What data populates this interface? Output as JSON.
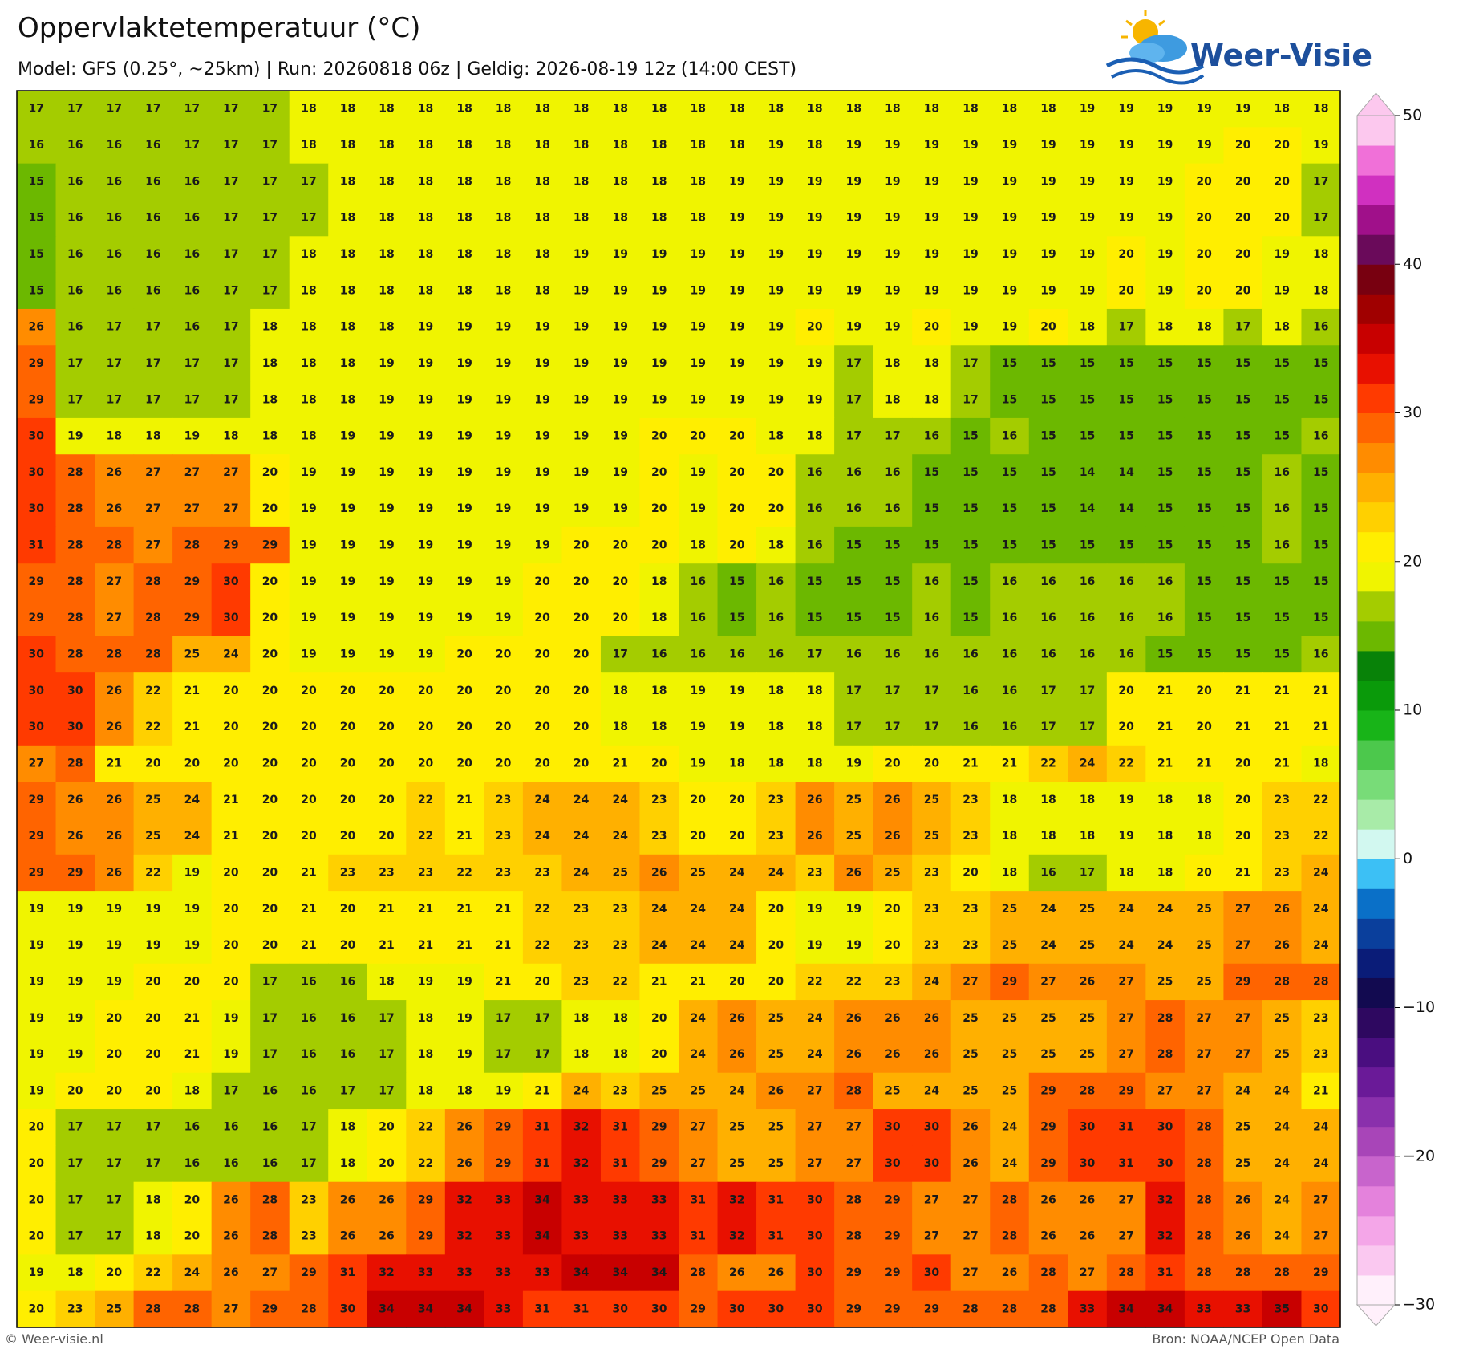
{
  "header": {
    "title": "Oppervlaktetemperatuur (°C)",
    "subtitle": "Model: GFS (0.25°, ~25km)  |  Run: 20260818 06z  |  Geldig: 2026-08-19 12z (14:00 CEST)"
  },
  "logo": "Weer-Visie",
  "footer": {
    "left": "© Weer-visie.nl",
    "right": "Bron: NOAA/NCEP Open Data"
  },
  "chart_data": {
    "type": "heatmap",
    "values": [
      [
        17,
        17,
        17,
        17,
        17,
        17,
        17,
        18,
        18,
        18,
        18,
        18,
        18,
        18,
        18,
        18,
        18,
        18,
        18,
        18,
        18,
        18,
        18,
        18,
        18,
        18,
        18,
        19,
        19,
        19,
        19,
        19,
        18,
        18
      ],
      [
        16,
        16,
        16,
        16,
        17,
        17,
        17,
        18,
        18,
        18,
        18,
        18,
        18,
        18,
        18,
        18,
        18,
        18,
        18,
        19,
        18,
        19,
        19,
        19,
        19,
        19,
        19,
        19,
        19,
        19,
        19,
        20,
        20,
        19
      ],
      [
        15,
        16,
        16,
        16,
        16,
        17,
        17,
        17,
        18,
        18,
        18,
        18,
        18,
        18,
        18,
        18,
        18,
        18,
        19,
        19,
        19,
        19,
        19,
        19,
        19,
        19,
        19,
        19,
        19,
        19,
        20,
        20,
        20,
        17
      ],
      [
        15,
        16,
        16,
        16,
        16,
        17,
        17,
        17,
        18,
        18,
        18,
        18,
        18,
        18,
        18,
        18,
        18,
        18,
        19,
        19,
        19,
        19,
        19,
        19,
        19,
        19,
        19,
        19,
        19,
        19,
        20,
        20,
        20,
        17
      ],
      [
        15,
        16,
        16,
        16,
        16,
        17,
        17,
        18,
        18,
        18,
        18,
        18,
        18,
        18,
        19,
        19,
        19,
        19,
        19,
        19,
        19,
        19,
        19,
        19,
        19,
        19,
        19,
        19,
        20,
        19,
        20,
        20,
        19,
        18
      ],
      [
        15,
        16,
        16,
        16,
        16,
        17,
        17,
        18,
        18,
        18,
        18,
        18,
        18,
        18,
        19,
        19,
        19,
        19,
        19,
        19,
        19,
        19,
        19,
        19,
        19,
        19,
        19,
        19,
        20,
        19,
        20,
        20,
        19,
        18
      ],
      [
        26,
        16,
        17,
        17,
        16,
        17,
        18,
        18,
        18,
        18,
        19,
        19,
        19,
        19,
        19,
        19,
        19,
        19,
        19,
        19,
        20,
        19,
        19,
        20,
        19,
        19,
        20,
        18,
        17,
        18,
        18,
        17,
        18,
        16
      ],
      [
        29,
        17,
        17,
        17,
        17,
        17,
        18,
        18,
        18,
        19,
        19,
        19,
        19,
        19,
        19,
        19,
        19,
        19,
        19,
        19,
        19,
        17,
        18,
        18,
        17,
        15,
        15,
        15,
        15,
        15,
        15,
        15,
        15,
        15
      ],
      [
        29,
        17,
        17,
        17,
        17,
        17,
        18,
        18,
        18,
        19,
        19,
        19,
        19,
        19,
        19,
        19,
        19,
        19,
        19,
        19,
        19,
        17,
        18,
        18,
        17,
        15,
        15,
        15,
        15,
        15,
        15,
        15,
        15,
        15
      ],
      [
        30,
        19,
        18,
        18,
        19,
        18,
        18,
        18,
        19,
        19,
        19,
        19,
        19,
        19,
        19,
        19,
        20,
        20,
        20,
        18,
        18,
        17,
        17,
        16,
        15,
        16,
        15,
        15,
        15,
        15,
        15,
        15,
        15,
        16
      ],
      [
        30,
        28,
        26,
        27,
        27,
        27,
        20,
        19,
        19,
        19,
        19,
        19,
        19,
        19,
        19,
        19,
        20,
        19,
        20,
        20,
        16,
        16,
        16,
        15,
        15,
        15,
        15,
        14,
        14,
        15,
        15,
        15,
        16,
        15
      ],
      [
        30,
        28,
        26,
        27,
        27,
        27,
        20,
        19,
        19,
        19,
        19,
        19,
        19,
        19,
        19,
        19,
        20,
        19,
        20,
        20,
        16,
        16,
        16,
        15,
        15,
        15,
        15,
        14,
        14,
        15,
        15,
        15,
        16,
        15
      ],
      [
        31,
        28,
        28,
        27,
        28,
        29,
        29,
        19,
        19,
        19,
        19,
        19,
        19,
        19,
        20,
        20,
        20,
        18,
        20,
        18,
        16,
        15,
        15,
        15,
        15,
        15,
        15,
        15,
        15,
        15,
        15,
        15,
        16,
        15
      ],
      [
        29,
        28,
        27,
        28,
        29,
        30,
        20,
        19,
        19,
        19,
        19,
        19,
        19,
        20,
        20,
        20,
        18,
        16,
        15,
        16,
        15,
        15,
        15,
        16,
        15,
        16,
        16,
        16,
        16,
        16,
        15,
        15,
        15,
        15
      ],
      [
        29,
        28,
        27,
        28,
        29,
        30,
        20,
        19,
        19,
        19,
        19,
        19,
        19,
        20,
        20,
        20,
        18,
        16,
        15,
        16,
        15,
        15,
        15,
        16,
        15,
        16,
        16,
        16,
        16,
        16,
        15,
        15,
        15,
        15
      ],
      [
        30,
        28,
        28,
        28,
        25,
        24,
        20,
        19,
        19,
        19,
        19,
        20,
        20,
        20,
        20,
        17,
        16,
        16,
        16,
        16,
        17,
        16,
        16,
        16,
        16,
        16,
        16,
        16,
        16,
        15,
        15,
        15,
        15,
        16
      ],
      [
        30,
        30,
        26,
        22,
        21,
        20,
        20,
        20,
        20,
        20,
        20,
        20,
        20,
        20,
        20,
        18,
        18,
        19,
        19,
        18,
        18,
        17,
        17,
        17,
        16,
        16,
        17,
        17,
        20,
        21,
        20,
        21,
        21,
        21
      ],
      [
        30,
        30,
        26,
        22,
        21,
        20,
        20,
        20,
        20,
        20,
        20,
        20,
        20,
        20,
        20,
        18,
        18,
        19,
        19,
        18,
        18,
        17,
        17,
        17,
        16,
        16,
        17,
        17,
        20,
        21,
        20,
        21,
        21,
        21
      ],
      [
        27,
        28,
        21,
        20,
        20,
        20,
        20,
        20,
        20,
        20,
        20,
        20,
        20,
        20,
        20,
        21,
        20,
        19,
        18,
        18,
        18,
        19,
        20,
        20,
        21,
        21,
        22,
        24,
        22,
        21,
        21,
        20,
        21,
        18
      ],
      [
        29,
        26,
        26,
        25,
        24,
        21,
        20,
        20,
        20,
        20,
        22,
        21,
        23,
        24,
        24,
        24,
        23,
        20,
        20,
        23,
        26,
        25,
        26,
        25,
        23,
        18,
        18,
        18,
        19,
        18,
        18,
        20,
        23,
        22
      ],
      [
        29,
        26,
        26,
        25,
        24,
        21,
        20,
        20,
        20,
        20,
        22,
        21,
        23,
        24,
        24,
        24,
        23,
        20,
        20,
        23,
        26,
        25,
        26,
        25,
        23,
        18,
        18,
        18,
        19,
        18,
        18,
        20,
        23,
        22
      ],
      [
        29,
        29,
        26,
        22,
        19,
        20,
        20,
        21,
        23,
        23,
        23,
        22,
        23,
        23,
        24,
        25,
        26,
        25,
        24,
        24,
        23,
        26,
        25,
        23,
        20,
        18,
        16,
        17,
        18,
        18,
        20,
        21,
        23,
        24
      ],
      [
        19,
        19,
        19,
        19,
        19,
        20,
        20,
        21,
        20,
        21,
        21,
        21,
        21,
        22,
        23,
        23,
        24,
        24,
        24,
        20,
        19,
        19,
        20,
        23,
        23,
        25,
        24,
        25,
        24,
        24,
        25,
        27,
        26,
        24
      ],
      [
        19,
        19,
        19,
        19,
        19,
        20,
        20,
        21,
        20,
        21,
        21,
        21,
        21,
        22,
        23,
        23,
        24,
        24,
        24,
        20,
        19,
        19,
        20,
        23,
        23,
        25,
        24,
        25,
        24,
        24,
        25,
        27,
        26,
        24
      ],
      [
        19,
        19,
        19,
        20,
        20,
        20,
        17,
        16,
        16,
        18,
        19,
        19,
        21,
        20,
        23,
        22,
        21,
        21,
        20,
        20,
        22,
        22,
        23,
        24,
        27,
        29,
        27,
        26,
        27,
        25,
        25,
        29,
        28,
        28
      ],
      [
        19,
        19,
        20,
        20,
        21,
        19,
        17,
        16,
        16,
        17,
        18,
        19,
        17,
        17,
        18,
        18,
        20,
        24,
        26,
        25,
        24,
        26,
        26,
        26,
        25,
        25,
        25,
        25,
        27,
        28,
        27,
        27,
        25,
        23
      ],
      [
        19,
        19,
        20,
        20,
        21,
        19,
        17,
        16,
        16,
        17,
        18,
        19,
        17,
        17,
        18,
        18,
        20,
        24,
        26,
        25,
        24,
        26,
        26,
        26,
        25,
        25,
        25,
        25,
        27,
        28,
        27,
        27,
        25,
        23
      ],
      [
        19,
        20,
        20,
        20,
        18,
        17,
        16,
        16,
        17,
        17,
        18,
        18,
        19,
        21,
        24,
        23,
        25,
        25,
        24,
        26,
        27,
        28,
        25,
        24,
        25,
        25,
        29,
        28,
        29,
        27,
        27,
        24,
        24,
        21
      ],
      [
        20,
        17,
        17,
        17,
        16,
        16,
        16,
        17,
        18,
        20,
        22,
        26,
        29,
        31,
        32,
        31,
        29,
        27,
        25,
        25,
        27,
        27,
        30,
        30,
        26,
        24,
        29,
        30,
        31,
        30,
        28,
        25,
        24,
        24
      ],
      [
        20,
        17,
        17,
        17,
        16,
        16,
        16,
        17,
        18,
        20,
        22,
        26,
        29,
        31,
        32,
        31,
        29,
        27,
        25,
        25,
        27,
        27,
        30,
        30,
        26,
        24,
        29,
        30,
        31,
        30,
        28,
        25,
        24,
        24
      ],
      [
        20,
        17,
        17,
        18,
        20,
        26,
        28,
        23,
        26,
        26,
        29,
        32,
        33,
        34,
        33,
        33,
        33,
        31,
        32,
        31,
        30,
        28,
        29,
        27,
        27,
        28,
        26,
        26,
        27,
        32,
        28,
        26,
        24,
        27
      ],
      [
        20,
        17,
        17,
        18,
        20,
        26,
        28,
        23,
        26,
        26,
        29,
        32,
        33,
        34,
        33,
        33,
        33,
        31,
        32,
        31,
        30,
        28,
        29,
        27,
        27,
        28,
        26,
        26,
        27,
        32,
        28,
        26,
        24,
        27
      ],
      [
        19,
        18,
        20,
        22,
        24,
        26,
        27,
        29,
        31,
        32,
        33,
        33,
        33,
        33,
        34,
        34,
        34,
        28,
        26,
        26,
        30,
        29,
        29,
        30,
        27,
        26,
        28,
        27,
        28,
        31,
        28,
        28,
        28,
        29
      ],
      [
        20,
        23,
        25,
        28,
        28,
        27,
        29,
        28,
        30,
        34,
        34,
        34,
        33,
        31,
        31,
        30,
        30,
        29,
        30,
        30,
        30,
        29,
        29,
        29,
        28,
        28,
        28,
        33,
        34,
        34,
        33,
        33,
        35,
        30
      ]
    ],
    "clim": [
      -30,
      50
    ],
    "cticks": [
      50,
      40,
      30,
      20,
      10,
      0,
      {
        "value": -10,
        "label": "−10"
      },
      {
        "value": -20,
        "label": "−20"
      },
      {
        "value": -30,
        "label": "−30"
      }
    ],
    "colors": [
      "#fff0fb",
      "#fac8f0",
      "#f4a6e8",
      "#e482dc",
      "#c864cc",
      "#a845b8",
      "#8a30ac",
      "#6a1a98",
      "#4a0e80",
      "#2e0860",
      "#120a50",
      "#0a1c78",
      "#0a3f9c",
      "#0a70c8",
      "#3cc0f5",
      "#d2f8f0",
      "#a8eba8",
      "#78dc78",
      "#4cc84c",
      "#18b418",
      "#0a9a0a",
      "#088208",
      "#6cb800",
      "#a4cc00",
      "#f0f400",
      "#ffee00",
      "#ffd000",
      "#ffb000",
      "#ff8c00",
      "#ff6400",
      "#ff3a00",
      "#e81000",
      "#c80000",
      "#a00000",
      "#780010",
      "#6a0a5a",
      "#a0108a",
      "#d030c0",
      "#f070d8",
      "#fcc8ee"
    ]
  }
}
